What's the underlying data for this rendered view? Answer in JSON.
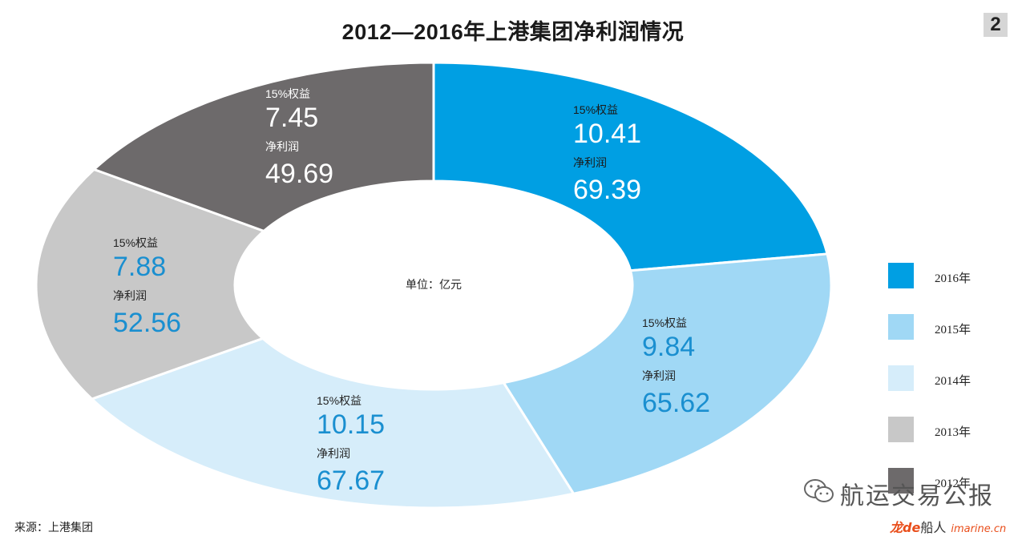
{
  "header": {
    "title": "2012—2016年上港集团净利润情况",
    "page_number": "2"
  },
  "chart_data": {
    "type": "pie",
    "variant": "donut",
    "title": "2012—2016年上港集团净利润情况",
    "unit_label": "单位：亿元",
    "categories": [
      "2016年",
      "2015年",
      "2014年",
      "2013年",
      "2012年"
    ],
    "values": [
      69.39,
      65.62,
      67.67,
      52.56,
      49.69
    ],
    "series": [
      {
        "name": "净利润",
        "values": [
          69.39,
          65.62,
          67.67,
          52.56,
          49.69
        ]
      },
      {
        "name": "15%权益",
        "values": [
          10.41,
          9.84,
          10.15,
          7.88,
          7.45
        ]
      }
    ],
    "segments": [
      {
        "year": "2016年",
        "color": "#009fe3",
        "text_color": "#ffffff",
        "equity_label": "15%权益",
        "equity_value": "10.41",
        "net_label": "净利润",
        "net_value": "69.39"
      },
      {
        "year": "2015年",
        "color": "#a0d8f5",
        "text_color": "#1a8fd0",
        "equity_label": "15%权益",
        "equity_value": "9.84",
        "net_label": "净利润",
        "net_value": "65.62"
      },
      {
        "year": "2014年",
        "color": "#d6edfa",
        "text_color": "#1a8fd0",
        "equity_label": "15%权益",
        "equity_value": "10.15",
        "net_label": "净利润",
        "net_value": "67.67"
      },
      {
        "year": "2013年",
        "color": "#c8c8c8",
        "text_color": "#1a8fd0",
        "equity_label": "15%权益",
        "equity_value": "7.88",
        "net_label": "净利润",
        "net_value": "52.56"
      },
      {
        "year": "2012年",
        "color": "#6d6a6b",
        "text_color": "#ffffff",
        "equity_label": "15%权益",
        "equity_value": "7.45",
        "net_label": "净利润",
        "net_value": "49.69"
      }
    ],
    "legend_position": "right"
  },
  "legend": {
    "items": [
      {
        "label": "2016年",
        "color": "#009fe3"
      },
      {
        "label": "2015年",
        "color": "#a0d8f5"
      },
      {
        "label": "2014年",
        "color": "#d6edfa"
      },
      {
        "label": "2013年",
        "color": "#c8c8c8"
      },
      {
        "label": "2012年",
        "color": "#6d6a6b"
      }
    ]
  },
  "footer": {
    "source": "来源：上港集团",
    "watermark": "航运交易公报",
    "logo_part1": "龙de",
    "logo_part2": "船人",
    "logo_part3": "imarine.cn"
  }
}
